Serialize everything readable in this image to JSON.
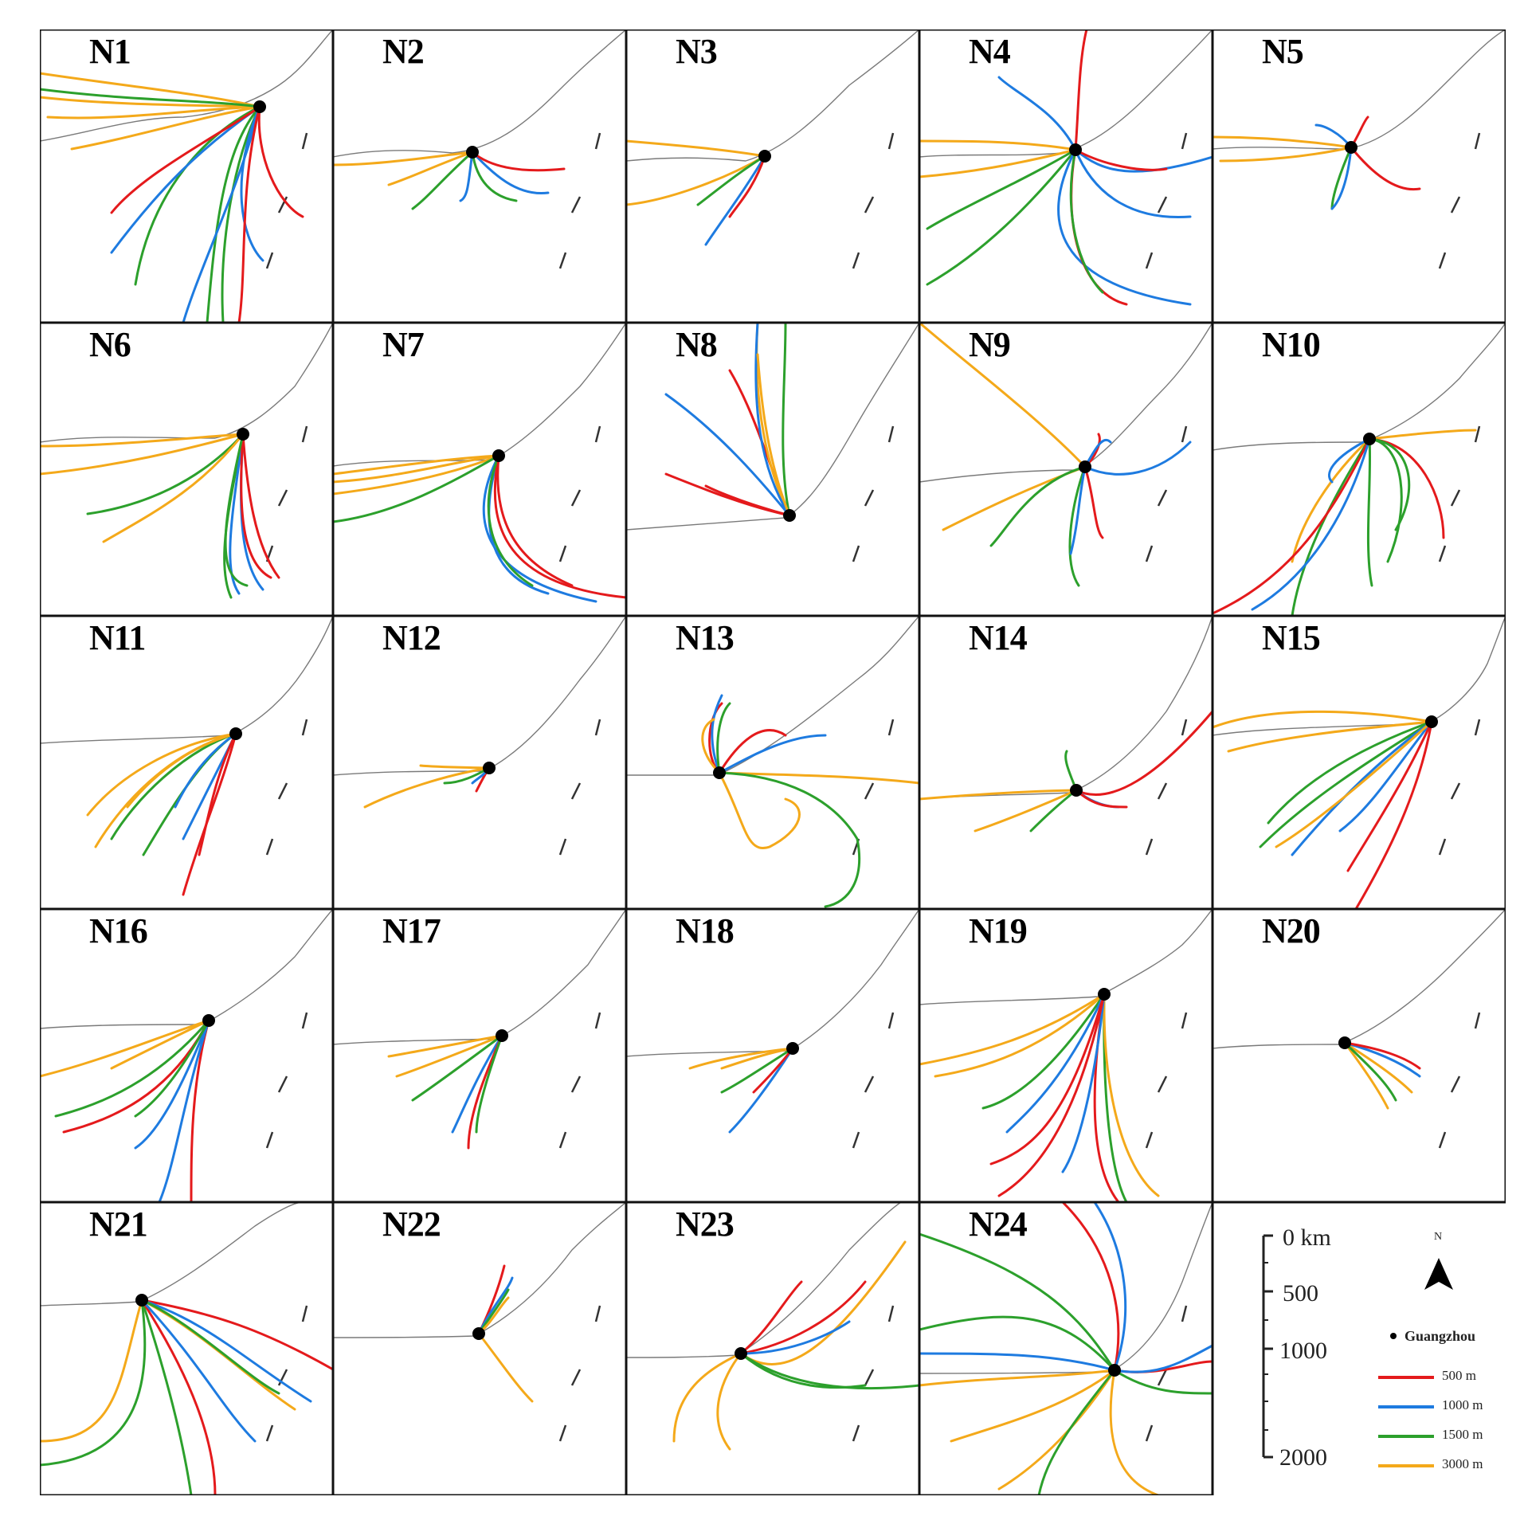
{
  "figure": {
    "station": "Guangzhou",
    "colors": {
      "500 m": "#e41a1c",
      "1000 m": "#1e7be0",
      "1500 m": "#2ca02c",
      "3000 m": "#f4a91a"
    },
    "station_marker_color": "#000000",
    "coast_color": "#7a7a7a"
  },
  "panels": [
    {
      "label": "N1"
    },
    {
      "label": "N2"
    },
    {
      "label": "N3"
    },
    {
      "label": "N4"
    },
    {
      "label": "N5"
    },
    {
      "label": "N6"
    },
    {
      "label": "N7"
    },
    {
      "label": "N8"
    },
    {
      "label": "N9"
    },
    {
      "label": "N10"
    },
    {
      "label": "N11"
    },
    {
      "label": "N12"
    },
    {
      "label": "N13"
    },
    {
      "label": "N14"
    },
    {
      "label": "N15"
    },
    {
      "label": "N16"
    },
    {
      "label": "N17"
    },
    {
      "label": "N18"
    },
    {
      "label": "N19"
    },
    {
      "label": "N20"
    },
    {
      "label": "N21"
    },
    {
      "label": "N22"
    },
    {
      "label": "N23"
    },
    {
      "label": "N24"
    }
  ],
  "scale_bar": {
    "unit_label": "0 km",
    "ticks": [
      "0 km",
      "500",
      "1000",
      "2000"
    ]
  },
  "north_arrow": {
    "label": "N",
    "icon": "north-arrow-icon"
  },
  "legend": {
    "station_label": "Guangzhou",
    "entries": [
      {
        "label": "500 m",
        "color": "#e41a1c"
      },
      {
        "label": "1000 m",
        "color": "#1e7be0"
      },
      {
        "label": "1500 m",
        "color": "#2ca02c"
      },
      {
        "label": "3000 m",
        "color": "#f4a91a"
      }
    ]
  }
}
